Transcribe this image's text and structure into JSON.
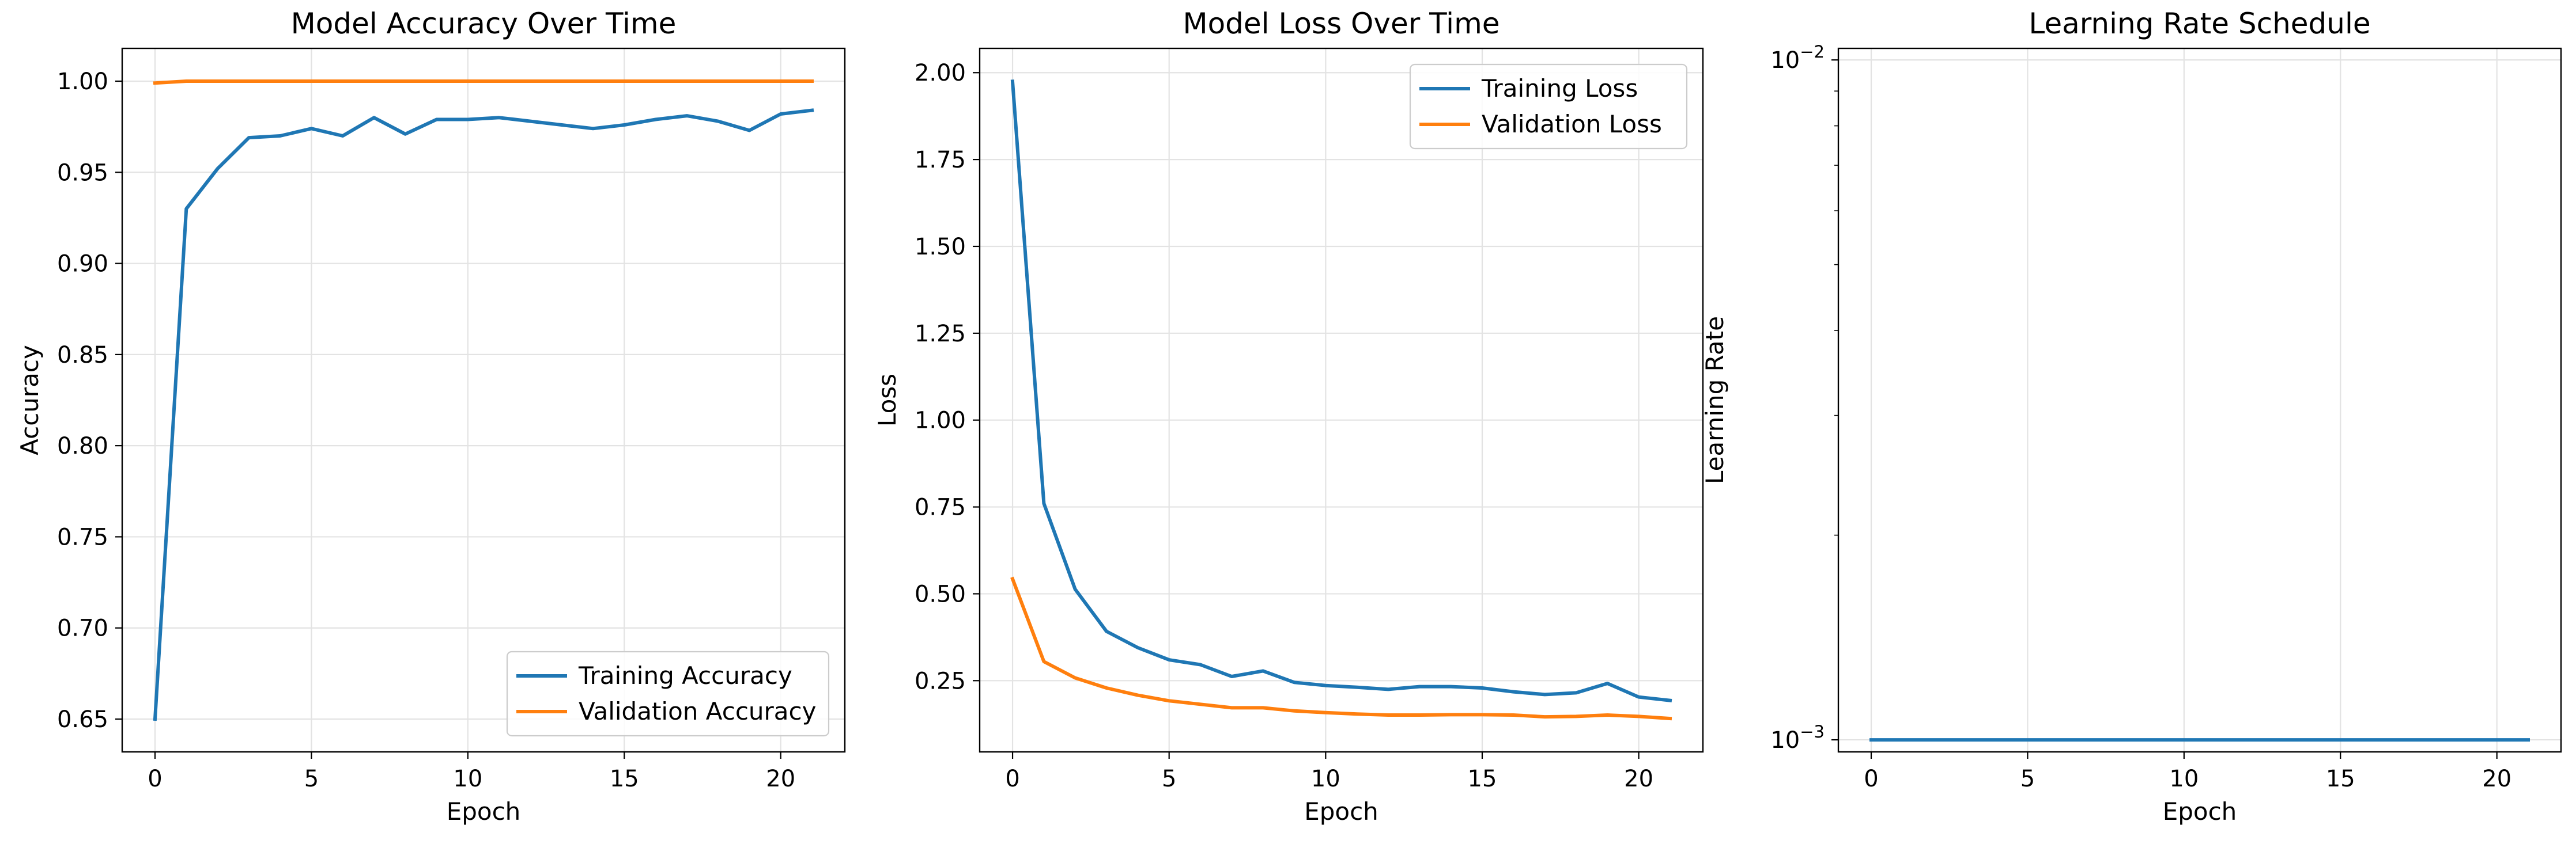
{
  "figure": {
    "series_colors": {
      "train": "#1f77b4",
      "val": "#ff7f0e"
    },
    "grid_color": "#e3e3e3"
  },
  "chart_data": [
    {
      "type": "line",
      "title": "Model Accuracy Over Time",
      "xlabel": "Epoch",
      "ylabel": "Accuracy",
      "xlim": [
        -1.05,
        22.05
      ],
      "ylim": [
        0.632,
        1.018
      ],
      "yscale": "linear",
      "grid": true,
      "legend": "lower right",
      "xticks": [
        0,
        5,
        10,
        15,
        20
      ],
      "xtick_labels": [
        "0",
        "5",
        "10",
        "15",
        "20"
      ],
      "yticks": [
        0.65,
        0.7,
        0.75,
        0.8,
        0.85,
        0.9,
        0.95,
        1.0
      ],
      "ytick_labels": [
        "0.65",
        "0.70",
        "0.75",
        "0.80",
        "0.85",
        "0.90",
        "0.95",
        "1.00"
      ],
      "x": [
        0,
        1,
        2,
        3,
        4,
        5,
        6,
        7,
        8,
        9,
        10,
        11,
        12,
        13,
        14,
        15,
        16,
        17,
        18,
        19,
        20,
        21
      ],
      "series": [
        {
          "name": "Training Accuracy",
          "color": "#1f77b4",
          "values": [
            0.65,
            0.93,
            0.952,
            0.969,
            0.97,
            0.974,
            0.97,
            0.98,
            0.971,
            0.979,
            0.979,
            0.98,
            0.978,
            0.976,
            0.974,
            0.976,
            0.979,
            0.981,
            0.978,
            0.973,
            0.982,
            0.984
          ]
        },
        {
          "name": "Validation Accuracy",
          "color": "#ff7f0e",
          "values": [
            0.999,
            1.0,
            1.0,
            1.0,
            1.0,
            1.0,
            1.0,
            1.0,
            1.0,
            1.0,
            1.0,
            1.0,
            1.0,
            1.0,
            1.0,
            1.0,
            1.0,
            1.0,
            1.0,
            1.0,
            1.0,
            1.0
          ]
        }
      ]
    },
    {
      "type": "line",
      "title": "Model Loss Over Time",
      "xlabel": "Epoch",
      "ylabel": "Loss",
      "xlim": [
        -1.05,
        22.05
      ],
      "ylim": [
        0.045,
        2.07
      ],
      "yscale": "linear",
      "grid": true,
      "legend": "upper right",
      "xticks": [
        0,
        5,
        10,
        15,
        20
      ],
      "xtick_labels": [
        "0",
        "5",
        "10",
        "15",
        "20"
      ],
      "yticks": [
        0.25,
        0.5,
        0.75,
        1.0,
        1.25,
        1.5,
        1.75,
        2.0
      ],
      "ytick_labels": [
        "0.25",
        "0.50",
        "0.75",
        "1.00",
        "1.25",
        "1.50",
        "1.75",
        "2.00"
      ],
      "x": [
        0,
        1,
        2,
        3,
        4,
        5,
        6,
        7,
        8,
        9,
        10,
        11,
        12,
        13,
        14,
        15,
        16,
        17,
        18,
        19,
        20,
        21
      ],
      "series": [
        {
          "name": "Training Loss",
          "color": "#1f77b4",
          "values": [
            1.975,
            0.76,
            0.513,
            0.392,
            0.345,
            0.31,
            0.296,
            0.262,
            0.278,
            0.245,
            0.236,
            0.231,
            0.225,
            0.233,
            0.233,
            0.229,
            0.218,
            0.21,
            0.215,
            0.242,
            0.203,
            0.193
          ]
        },
        {
          "name": "Validation Loss",
          "color": "#ff7f0e",
          "values": [
            0.543,
            0.305,
            0.258,
            0.229,
            0.208,
            0.192,
            0.182,
            0.172,
            0.172,
            0.163,
            0.158,
            0.154,
            0.151,
            0.151,
            0.152,
            0.152,
            0.151,
            0.146,
            0.147,
            0.151,
            0.147,
            0.141
          ]
        }
      ]
    },
    {
      "type": "line",
      "title": "Learning Rate Schedule",
      "xlabel": "Epoch",
      "ylabel": "Learning Rate",
      "xlim": [
        -1.05,
        22.05
      ],
      "ylim": [
        0.00096,
        0.0104
      ],
      "yscale": "log",
      "grid": true,
      "legend": "none",
      "xticks": [
        0,
        5,
        10,
        15,
        20
      ],
      "xtick_labels": [
        "0",
        "5",
        "10",
        "15",
        "20"
      ],
      "yticks": [
        0.001,
        0.01
      ],
      "ytick_labels": [
        {
          "base": "10",
          "exp": "−3"
        },
        {
          "base": "10",
          "exp": "−2"
        }
      ],
      "yminorticks": [
        0.002,
        0.003,
        0.004,
        0.005,
        0.006,
        0.007,
        0.008,
        0.009
      ],
      "x": [
        0,
        1,
        2,
        3,
        4,
        5,
        6,
        7,
        8,
        9,
        10,
        11,
        12,
        13,
        14,
        15,
        16,
        17,
        18,
        19,
        20,
        21
      ],
      "series": [
        {
          "name": "",
          "color": "#1f77b4",
          "values": [
            0.001,
            0.001,
            0.001,
            0.001,
            0.001,
            0.001,
            0.001,
            0.001,
            0.001,
            0.001,
            0.001,
            0.001,
            0.001,
            0.001,
            0.001,
            0.001,
            0.001,
            0.001,
            0.001,
            0.001,
            0.001,
            0.001
          ]
        }
      ]
    }
  ]
}
